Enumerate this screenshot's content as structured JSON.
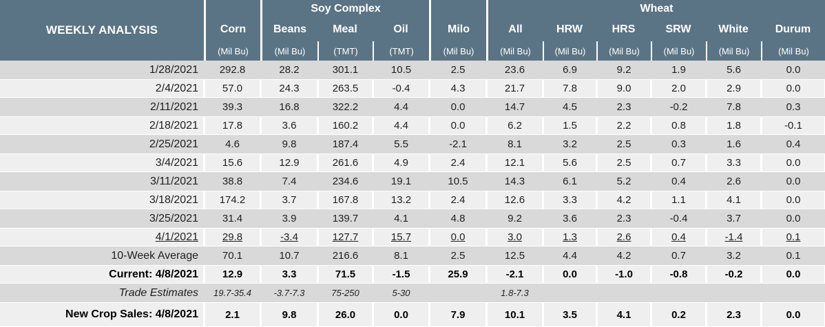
{
  "title": "WEEKLY ANALYSIS",
  "colors": {
    "header_bg": "#5b7485",
    "header_text": "#ffffff",
    "row_dark": "#d9d9d9",
    "row_light": "#efefef",
    "gridline": "#ffffff",
    "text": "#1f1f1f"
  },
  "header": {
    "groups": {
      "soy": "Soy Complex",
      "wheat": "Wheat"
    },
    "columns": [
      {
        "name": "Corn",
        "unit": "(Mil Bu)"
      },
      {
        "name": "Beans",
        "unit": "(Mil Bu)"
      },
      {
        "name": "Meal",
        "unit": "(TMT)"
      },
      {
        "name": "Oil",
        "unit": "(TMT)"
      },
      {
        "name": "Milo",
        "unit": "(Mil Bu)"
      },
      {
        "name": "All",
        "unit": "(Mil Bu)"
      },
      {
        "name": "HRW",
        "unit": "(Mil Bu)"
      },
      {
        "name": "HRS",
        "unit": "(Mil Bu)"
      },
      {
        "name": "SRW",
        "unit": "(Mil Bu)"
      },
      {
        "name": "White",
        "unit": "(Mil Bu)"
      },
      {
        "name": "Durum",
        "unit": "(Mil Bu)"
      }
    ]
  },
  "body": {
    "rows": [
      {
        "label": "1/28/2021",
        "style": "",
        "values": [
          "292.8",
          "28.2",
          "301.1",
          "10.5",
          "2.5",
          "23.6",
          "6.9",
          "9.2",
          "1.9",
          "5.6",
          "0.0"
        ]
      },
      {
        "label": "2/4/2021",
        "style": "",
        "values": [
          "57.0",
          "24.3",
          "263.5",
          "-0.4",
          "4.3",
          "21.7",
          "7.8",
          "9.0",
          "2.0",
          "2.9",
          "0.0"
        ]
      },
      {
        "label": "2/11/2021",
        "style": "",
        "values": [
          "39.3",
          "16.8",
          "322.2",
          "4.4",
          "0.0",
          "14.7",
          "4.5",
          "2.3",
          "-0.2",
          "7.8",
          "0.3"
        ]
      },
      {
        "label": "2/18/2021",
        "style": "",
        "values": [
          "17.8",
          "3.6",
          "160.2",
          "4.4",
          "0.0",
          "6.2",
          "1.5",
          "2.2",
          "0.8",
          "1.8",
          "-0.1"
        ]
      },
      {
        "label": "2/25/2021",
        "style": "",
        "values": [
          "4.6",
          "9.8",
          "187.4",
          "5.5",
          "-2.1",
          "8.1",
          "3.2",
          "2.5",
          "0.3",
          "1.6",
          "0.4"
        ]
      },
      {
        "label": "3/4/2021",
        "style": "",
        "values": [
          "15.6",
          "12.9",
          "261.6",
          "4.9",
          "2.4",
          "12.1",
          "5.6",
          "2.5",
          "0.7",
          "3.3",
          "0.0"
        ]
      },
      {
        "label": "3/11/2021",
        "style": "",
        "values": [
          "38.8",
          "7.4",
          "234.6",
          "19.1",
          "10.5",
          "14.3",
          "6.1",
          "5.2",
          "0.4",
          "2.6",
          "0.0"
        ]
      },
      {
        "label": "3/18/2021",
        "style": "",
        "values": [
          "174.2",
          "3.7",
          "167.8",
          "13.2",
          "2.4",
          "12.6",
          "3.3",
          "4.2",
          "1.1",
          "4.1",
          "0.0"
        ]
      },
      {
        "label": "3/25/2021",
        "style": "",
        "values": [
          "31.4",
          "3.9",
          "139.7",
          "4.1",
          "4.8",
          "9.2",
          "3.6",
          "2.3",
          "-0.4",
          "3.7",
          "0.0"
        ]
      },
      {
        "label": "4/1/2021",
        "style": "underline",
        "values": [
          "29.8",
          "-3.4",
          "127.7",
          "15.7",
          "0.0",
          "3.0",
          "1.3",
          "2.6",
          "0.4",
          "-1.4",
          "0.1"
        ]
      },
      {
        "label": "10-Week Average",
        "style": "",
        "values": [
          "70.1",
          "10.7",
          "216.6",
          "8.1",
          "2.5",
          "12.5",
          "4.4",
          "4.2",
          "0.7",
          "3.2",
          "0.1"
        ]
      },
      {
        "label": "Current: 4/8/2021",
        "style": "bold",
        "values": [
          "12.9",
          "3.3",
          "71.5",
          "-1.5",
          "25.9",
          "-2.1",
          "0.0",
          "-1.0",
          "-0.8",
          "-0.2",
          "0.0"
        ]
      },
      {
        "label": "Trade Estimates",
        "style": "italic",
        "values": [
          "19.7-35.4",
          "-3.7-7.3",
          "75-250",
          "5-30",
          "",
          "1.8-7.3",
          "",
          "",
          "",
          "",
          ""
        ]
      },
      {
        "label": "New Crop Sales: 4/8/2021",
        "style": "bold",
        "values": [
          "2.1",
          "9.8",
          "26.0",
          "0.0",
          "7.9",
          "10.1",
          "3.5",
          "4.1",
          "0.2",
          "2.3",
          "0.0"
        ]
      }
    ]
  }
}
